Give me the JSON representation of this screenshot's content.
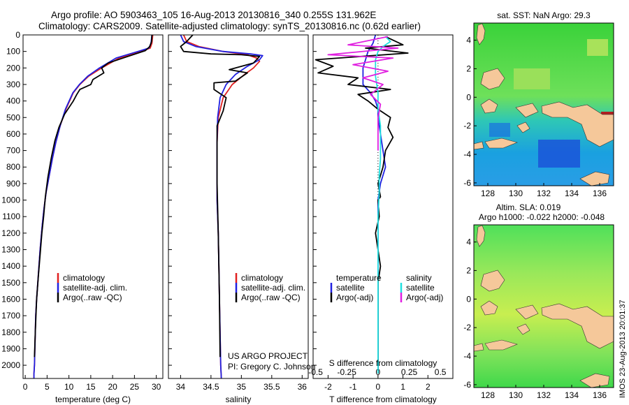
{
  "header": {
    "line1": "Argo profile: AO 5903463_105 16-Aug-2013 20130816_340 0.255S 131.962E",
    "line2": "Climatology: CARS2009. Satellite-adjusted climatology: synTS_20130816.nc (0.62d earlier)"
  },
  "colors": {
    "climatology": "#e02020",
    "satellite": "#2020e0",
    "argo": "#000000",
    "sat_salinity": "#20e0e0",
    "argo_salinity": "#e020e0",
    "land": "#f5c89a"
  },
  "credits": {
    "project": "US ARGO PROJECT",
    "pi": "PI: Gregory C. Johnson",
    "stamp": "IMOS 23-Aug-2013 20:01:37"
  },
  "chart_data": [
    {
      "type": "line",
      "panel": "temperature",
      "xlabel": "temperature (deg C)",
      "ylabel": "",
      "xlim": [
        -0.5,
        31.5
      ],
      "ylim": [
        2080,
        0
      ],
      "xticks": [
        0,
        5,
        10,
        15,
        20,
        25,
        30
      ],
      "xtick_labels": [
        "0",
        "5",
        "10",
        "15",
        "20",
        "25",
        "30"
      ],
      "yticks": [
        0,
        100,
        200,
        300,
        400,
        500,
        600,
        700,
        800,
        900,
        1000,
        1100,
        1200,
        1300,
        1400,
        1500,
        1600,
        1700,
        1800,
        1900,
        2000
      ],
      "ytick_labels": [
        "0",
        "100",
        "200",
        "300",
        "400",
        "500",
        "600",
        "700",
        "800",
        "900",
        "1000",
        "1100",
        "1200",
        "1300",
        "1400",
        "1500",
        "1600",
        "1700",
        "1800",
        "1900",
        "2000"
      ],
      "legend": {
        "position": "middle",
        "entries": [
          "climatology",
          "satellite-adj. clim.",
          "Argo(..raw -QC)"
        ]
      },
      "series": [
        {
          "name": "climatology",
          "color": "#e02020",
          "x": [
            29.2,
            29.0,
            28.6,
            26.5,
            21.5,
            17.5,
            14.5,
            12.5,
            11.0,
            9.3,
            8.0,
            7.0,
            6.2,
            5.5,
            4.8,
            4.3,
            3.9,
            3.4,
            3.0,
            2.6,
            2.4,
            2.3,
            2.2,
            2.1,
            2.0,
            2.0
          ],
          "y": [
            0,
            50,
            80,
            100,
            140,
            200,
            250,
            300,
            350,
            450,
            550,
            650,
            750,
            850,
            950,
            1050,
            1150,
            1300,
            1450,
            1600,
            1700,
            1800,
            1900,
            2000,
            2050,
            2080
          ]
        },
        {
          "name": "satellite-adj. clim.",
          "color": "#2020e0",
          "x": [
            29.0,
            28.8,
            28.3,
            25.8,
            20.8,
            17.0,
            14.3,
            12.4,
            10.9,
            9.2,
            8.0,
            7.0,
            6.2,
            5.5,
            4.8,
            4.3,
            3.9,
            3.4,
            3.0,
            2.6,
            2.4,
            2.3,
            2.2,
            2.1,
            2.0,
            2.0
          ],
          "y": [
            0,
            50,
            80,
            100,
            140,
            200,
            250,
            300,
            350,
            450,
            550,
            650,
            750,
            850,
            950,
            1050,
            1150,
            1300,
            1450,
            1600,
            1700,
            1800,
            1900,
            2000,
            2050,
            2080
          ]
        },
        {
          "name": "Argo(..raw -QC)",
          "color": "#000000",
          "x": [
            29.0,
            28.9,
            28.5,
            27.5,
            23.5,
            19.0,
            17.5,
            18.0,
            15.5,
            15.0,
            12.5,
            11.8,
            11.0,
            9.0,
            7.7,
            6.8,
            6.0,
            5.2,
            4.6,
            4.2,
            3.8,
            3.4,
            3.0,
            2.6,
            2.3,
            2.1
          ],
          "y": [
            0,
            40,
            70,
            95,
            130,
            170,
            200,
            230,
            270,
            300,
            330,
            360,
            400,
            480,
            560,
            640,
            740,
            860,
            980,
            1100,
            1200,
            1330,
            1460,
            1600,
            1800,
            1950
          ]
        }
      ]
    },
    {
      "type": "line",
      "panel": "salinity",
      "xlabel": "salinity",
      "ylabel": "",
      "xlim": [
        33.8,
        36.1
      ],
      "ylim": [
        2080,
        0
      ],
      "xticks": [
        34,
        34.5,
        35,
        35.5,
        36
      ],
      "xtick_labels": [
        "34",
        "34.5",
        "35",
        "35.5",
        "36"
      ],
      "legend": {
        "position": "middle",
        "entries": [
          "climatology",
          "satellite-adj. clim.",
          "Argo(..raw -QC)"
        ]
      },
      "series": [
        {
          "name": "climatology",
          "color": "#e02020",
          "x": [
            34.05,
            34.1,
            34.3,
            34.7,
            35.1,
            35.25,
            35.3,
            35.2,
            35.05,
            34.85,
            34.7,
            34.62,
            34.6,
            34.6,
            34.6,
            34.62,
            34.63,
            34.64,
            34.65,
            34.66,
            34.67
          ],
          "y": [
            0,
            40,
            70,
            100,
            120,
            140,
            160,
            200,
            240,
            300,
            380,
            500,
            650,
            800,
            1000,
            1200,
            1400,
            1600,
            1800,
            2000,
            2080
          ]
        },
        {
          "name": "satellite-adj. clim.",
          "color": "#2020e0",
          "x": [
            34.0,
            34.05,
            34.25,
            34.7,
            35.15,
            35.35,
            35.3,
            35.1,
            34.9,
            34.75,
            34.65,
            34.61,
            34.6,
            34.6,
            34.6,
            34.62,
            34.63,
            34.64,
            34.65,
            34.66,
            34.67
          ],
          "y": [
            0,
            40,
            70,
            100,
            115,
            125,
            150,
            190,
            240,
            300,
            380,
            500,
            650,
            800,
            1000,
            1200,
            1400,
            1600,
            1800,
            2000,
            2080
          ]
        },
        {
          "name": "Argo(..raw -QC)",
          "color": "#000000",
          "x": [
            34.2,
            34.1,
            34.0,
            34.05,
            34.5,
            35.0,
            35.3,
            35.2,
            34.8,
            35.1,
            34.9,
            34.55,
            34.55,
            34.75,
            34.7,
            34.6,
            34.6,
            34.6,
            34.62,
            34.64,
            34.65
          ],
          "y": [
            0,
            40,
            70,
            100,
            115,
            120,
            130,
            170,
            210,
            230,
            280,
            290,
            330,
            380,
            460,
            550,
            700,
            900,
            1200,
            1600,
            1950
          ]
        }
      ]
    },
    {
      "type": "line",
      "panel": "difference",
      "xlabel": "T difference from climatology",
      "xlabel_top": "S difference from climatology",
      "ylabel": "",
      "xlim": [
        -2.6,
        3.0
      ],
      "ylim": [
        2080,
        0
      ],
      "xticks": [
        -2,
        -1,
        0,
        1,
        2
      ],
      "xtick_labels": [
        "-2",
        "-1",
        "0",
        "1",
        "2"
      ],
      "s_xticks": [
        -0.5,
        -0.25,
        0,
        0.25,
        0.5
      ],
      "s_xtick_labels": [
        "-0.5",
        "-0.25",
        "0",
        "0.25",
        "0.5"
      ],
      "s_scale": 5,
      "legend": {
        "position": "middle",
        "entries": [
          "temperature",
          "satellite",
          "Argo(-adj)",
          "salinity",
          "satellite",
          "Argo(-adj)"
        ]
      },
      "series": [
        {
          "name": "satellite",
          "color": "#2020e0",
          "variable": "temperature",
          "x": [
            -0.1,
            -0.2,
            -0.4,
            -0.5,
            -0.6,
            -0.6,
            -0.3,
            -0.1,
            0.0,
            0.0,
            0.1,
            0.2,
            0.3,
            0.1,
            0.0,
            0.0,
            0.0,
            0.0,
            0.0,
            0.0,
            0.0
          ],
          "y": [
            0,
            50,
            100,
            150,
            200,
            300,
            350,
            400,
            450,
            500,
            600,
            700,
            800,
            900,
            1000,
            1200,
            1400,
            1600,
            1800,
            2000,
            2050
          ]
        },
        {
          "name": "Argo(-adj)",
          "color": "#000000",
          "variable": "temperature",
          "x": [
            0.3,
            1.0,
            -0.5,
            1.2,
            -2.5,
            -1.8,
            -2.4,
            -0.8,
            -1.2,
            0.5,
            -0.8,
            -0.4,
            0.0,
            0.5,
            0.4,
            0.6,
            0.3,
            0.2,
            0.0,
            0.1,
            0.0,
            0.05,
            -0.1,
            0.1,
            0.0,
            0.0,
            0.0,
            0.0,
            0.0
          ],
          "y": [
            10,
            60,
            80,
            110,
            150,
            190,
            230,
            260,
            300,
            330,
            360,
            400,
            450,
            500,
            560,
            620,
            700,
            800,
            900,
            980,
            1000,
            1100,
            1200,
            1400,
            1500,
            1600,
            1800,
            1950,
            2050
          ]
        },
        {
          "name": "satellite",
          "color": "#20e0e0",
          "variable": "salinity",
          "x": [
            0.3,
            0.5,
            0.2,
            0.0,
            -0.1,
            -0.1,
            0.0,
            0.0,
            0.1,
            0.1,
            0.1,
            0.05,
            0.05,
            0.0,
            0.0,
            0.0,
            0.0
          ],
          "y": [
            10,
            40,
            70,
            100,
            150,
            250,
            350,
            450,
            550,
            650,
            750,
            850,
            950,
            1100,
            1400,
            1700,
            2050
          ]
        },
        {
          "name": "Argo(-adj)",
          "color": "#e020e0",
          "variable": "salinity",
          "x": [
            0.4,
            -1.2,
            0.8,
            -2.0,
            0.6,
            -1.0,
            0.4,
            -0.6,
            0.2,
            -0.3,
            0.1,
            0.0,
            0.0,
            0.0
          ],
          "y": [
            10,
            60,
            80,
            120,
            140,
            180,
            220,
            260,
            300,
            360,
            420,
            500,
            600,
            700
          ]
        }
      ]
    },
    {
      "type": "heatmap",
      "panel": "sst_map",
      "title": "sat. SST: NaN Argo: 29.3",
      "xlim": [
        127,
        137
      ],
      "ylim": [
        -6.2,
        5.2
      ],
      "xticks": [
        128,
        130,
        132,
        134,
        136
      ],
      "xtick_labels": [
        "128",
        "130",
        "132",
        "134",
        "136"
      ],
      "yticks": [
        4,
        2,
        0,
        -2,
        -4,
        -6
      ],
      "ytick_labels": [
        "4",
        "2",
        "0",
        "-2",
        "-4",
        "-6"
      ]
    },
    {
      "type": "heatmap",
      "panel": "sla_map",
      "title": "Altim. SLA: 0.019",
      "subtitle": "Argo h1000: -0.022 h2000: -0.048",
      "xlim": [
        127,
        137
      ],
      "ylim": [
        -6.2,
        5.2
      ],
      "xticks": [
        128,
        130,
        132,
        134,
        136
      ],
      "xtick_labels": [
        "128",
        "130",
        "132",
        "134",
        "136"
      ],
      "yticks": [
        4,
        2,
        0,
        -2,
        -4,
        -6
      ],
      "ytick_labels": [
        "4",
        "2",
        "0",
        "-2",
        "-4",
        "-6"
      ]
    }
  ]
}
